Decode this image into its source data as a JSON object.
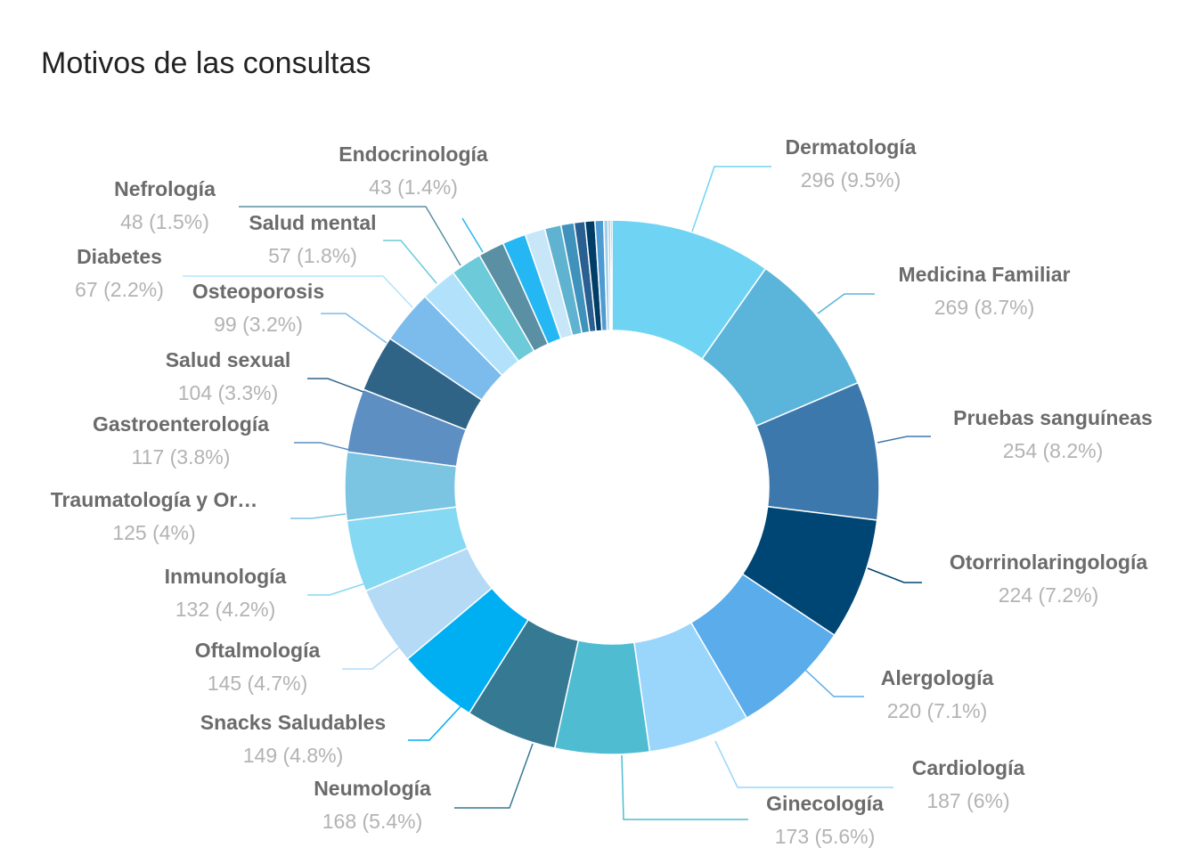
{
  "chart_data": {
    "type": "pie",
    "title": "Motivos de las consultas",
    "donut": true,
    "legend": "none",
    "slices": [
      {
        "label": "Dermatología",
        "value": 296,
        "display": "296 (9.5%)",
        "color": "#6fd4f3"
      },
      {
        "label": "Medicina Familiar",
        "value": 269,
        "display": "269 (8.7%)",
        "color": "#5bb4da"
      },
      {
        "label": "Pruebas sanguíneas",
        "value": 254,
        "display": "254 (8.2%)",
        "color": "#3d78ad"
      },
      {
        "label": "Otorrinolaringología",
        "value": 224,
        "display": "224 (7.2%)",
        "color": "#004675"
      },
      {
        "label": "Alergología",
        "value": 220,
        "display": "220 (7.1%)",
        "color": "#5aacea"
      },
      {
        "label": "Cardiología",
        "value": 187,
        "display": "187 (6%)",
        "color": "#9ad6fb"
      },
      {
        "label": "Ginecología",
        "value": 173,
        "display": "173 (5.6%)",
        "color": "#4fbcd2"
      },
      {
        "label": "Neumología",
        "value": 168,
        "display": "168 (5.4%)",
        "color": "#357993"
      },
      {
        "label": "Snacks Saludables",
        "value": 149,
        "display": "149 (4.8%)",
        "color": "#00aef2"
      },
      {
        "label": "Oftalmología",
        "value": 145,
        "display": "145 (4.7%)",
        "color": "#b4daf5"
      },
      {
        "label": "Inmunología",
        "value": 132,
        "display": "132 (4.2%)",
        "color": "#85d9f2"
      },
      {
        "label": "Traumatología y Or…",
        "value": 125,
        "display": "125 (4%)",
        "color": "#7bc4e2"
      },
      {
        "label": "Gastroenterología",
        "value": 117,
        "display": "117 (3.8%)",
        "color": "#5d8fc3"
      },
      {
        "label": "Salud sexual",
        "value": 104,
        "display": "104 (3.3%)",
        "color": "#2f6486"
      },
      {
        "label": "Osteoporosis",
        "value": 99,
        "display": "99 (3.2%)",
        "color": "#7cbcec"
      },
      {
        "label": "Diabetes",
        "value": 67,
        "display": "67 (2.2%)",
        "color": "#b2e2fb"
      },
      {
        "label": "Salud mental",
        "value": 57,
        "display": "57 (1.8%)",
        "color": "#6ccad9"
      },
      {
        "label": "Nefrología",
        "value": 48,
        "display": "48 (1.5%)",
        "color": "#5b8fa3"
      },
      {
        "label": "Endocrinología",
        "value": 43,
        "display": "43 (1.4%)",
        "color": "#25b7f4"
      },
      {
        "label": "",
        "value": 37,
        "display": "",
        "color": "#c7e6f8"
      },
      {
        "label": "",
        "value": 30,
        "display": "",
        "color": "#5fb3d1"
      },
      {
        "label": "",
        "value": 24,
        "display": "",
        "color": "#3f92bb"
      },
      {
        "label": "",
        "value": 20,
        "display": "",
        "color": "#2a5f91"
      },
      {
        "label": "",
        "value": 18,
        "display": "",
        "color": "#003e68"
      },
      {
        "label": "",
        "value": 16,
        "display": "",
        "color": "#4e9bd4"
      },
      {
        "label": "",
        "value": 8,
        "display": "",
        "color": "#a3cfe8"
      },
      {
        "label": "",
        "value": 4,
        "display": "",
        "color": "#5aa9c9"
      },
      {
        "label": "",
        "value": 3,
        "display": "",
        "color": "#3a6d9a"
      }
    ]
  }
}
